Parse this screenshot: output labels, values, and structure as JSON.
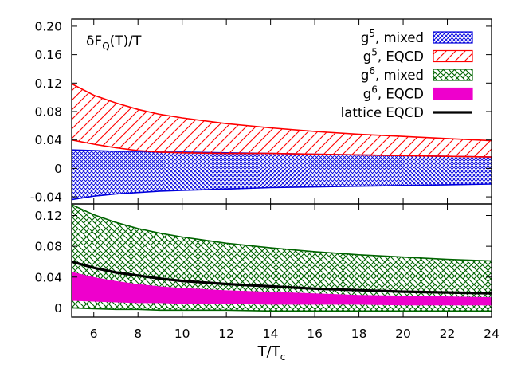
{
  "figure": {
    "panel_label": {
      "base": "δF",
      "sub": "Q",
      "rest": "(T)/T"
    },
    "xlabel": {
      "base": "T/T",
      "sub": "c"
    }
  },
  "chart_data": {
    "type": "area",
    "x_range": [
      5,
      24
    ],
    "x_ticks": [
      "6",
      "8",
      "10",
      "12",
      "14",
      "16",
      "18",
      "20",
      "22",
      "24"
    ],
    "panels": [
      {
        "name": "top",
        "y_range": [
          -0.05,
          0.21
        ],
        "y_ticks": [
          "0.20",
          "0.16",
          "0.12",
          "0.08",
          "0.04",
          "0",
          "-0.04"
        ],
        "legend_position": "top-right",
        "legend": [
          {
            "base": "g",
            "sup": "5",
            "rest": ", mixed",
            "series": 0
          },
          {
            "base": "g",
            "sup": "5",
            "rest": ", EQCD",
            "series": 1
          },
          {
            "base": "g",
            "sup": "6",
            "rest": ", mixed",
            "series": 2
          },
          {
            "base": "g",
            "sup": "6",
            "rest": ", EQCD",
            "series": 3
          },
          {
            "base": "",
            "sup": "",
            "rest": "lattice EQCD",
            "series": 4
          }
        ],
        "series": [
          {
            "style": "band-crosshatch",
            "color": "#0000dd",
            "x": [
              5,
              6,
              7,
              8,
              9,
              10,
              12,
              14,
              16,
              18,
              20,
              22,
              24
            ],
            "lower": [
              -0.044,
              -0.039,
              -0.036,
              -0.034,
              -0.032,
              -0.031,
              -0.029,
              -0.027,
              -0.026,
              -0.025,
              -0.024,
              -0.023,
              -0.022
            ],
            "upper": [
              0.026,
              0.025,
              0.024,
              0.024,
              0.023,
              0.023,
              0.022,
              0.021,
              0.02,
              0.019,
              0.018,
              0.017,
              0.016
            ]
          },
          {
            "style": "band-hatch",
            "color": "#ff0000",
            "x": [
              5,
              6,
              7,
              8,
              9,
              10,
              12,
              14,
              16,
              18,
              20,
              22,
              24
            ],
            "lower": [
              0.04,
              0.034,
              0.029,
              0.025,
              0.023,
              0.022,
              0.021,
              0.021,
              0.02,
              0.019,
              0.018,
              0.017,
              0.016
            ],
            "upper": [
              0.119,
              0.103,
              0.092,
              0.083,
              0.076,
              0.071,
              0.063,
              0.057,
              0.052,
              0.048,
              0.045,
              0.042,
              0.039
            ]
          }
        ]
      },
      {
        "name": "bottom",
        "y_range": [
          -0.012,
          0.135
        ],
        "y_ticks": [
          "0.12",
          "0.08",
          "0.04",
          "0"
        ],
        "series": [
          {
            "style": "band-crosshatch",
            "color": "#006400",
            "x": [
              5,
              6,
              7,
              8,
              9,
              10,
              12,
              14,
              16,
              18,
              20,
              22,
              24
            ],
            "lower": [
              0.0,
              -0.001,
              -0.002,
              -0.002,
              -0.003,
              -0.003,
              -0.003,
              -0.004,
              -0.004,
              -0.004,
              -0.004,
              -0.004,
              -0.004
            ],
            "upper": [
              0.134,
              0.121,
              0.111,
              0.103,
              0.097,
              0.092,
              0.084,
              0.078,
              0.073,
              0.069,
              0.066,
              0.063,
              0.061
            ]
          },
          {
            "style": "band-solid",
            "color": "#ee00cc",
            "x": [
              5,
              6,
              7,
              8,
              9,
              10,
              12,
              14,
              16,
              18,
              20,
              22,
              24
            ],
            "lower": [
              0.01,
              0.009,
              0.008,
              0.007,
              0.007,
              0.006,
              0.006,
              0.005,
              0.005,
              0.005,
              0.004,
              0.004,
              0.004
            ],
            "upper": [
              0.046,
              0.039,
              0.034,
              0.03,
              0.027,
              0.025,
              0.022,
              0.02,
              0.018,
              0.016,
              0.015,
              0.014,
              0.013
            ]
          },
          {
            "style": "line",
            "color": "#000000",
            "x": [
              5,
              6,
              7,
              8,
              9,
              10,
              12,
              14,
              16,
              18,
              20,
              22,
              24
            ],
            "y": [
              0.06,
              0.052,
              0.046,
              0.042,
              0.038,
              0.035,
              0.031,
              0.028,
              0.025,
              0.023,
              0.021,
              0.02,
              0.019
            ]
          }
        ]
      }
    ]
  }
}
